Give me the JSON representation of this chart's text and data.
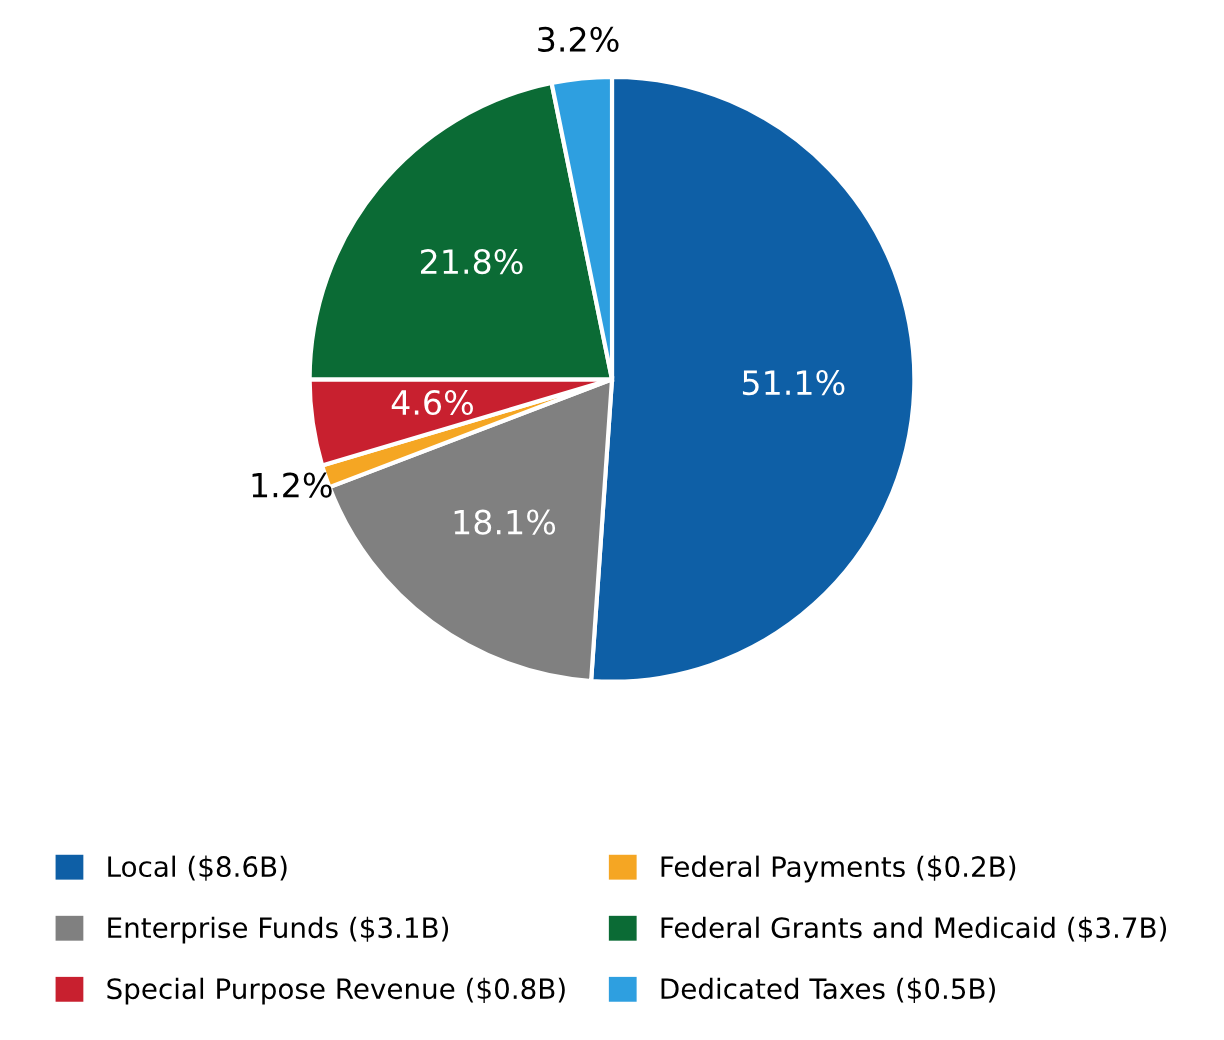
{
  "chart_data": {
    "type": "pie",
    "categories": [
      "Local ($8.6B)",
      "Enterprise Funds ($3.1B)",
      "Federal Payments ($0.2B)",
      "Special Purpose Revenue ($0.8B)",
      "Federal Grants and Medicaid ($3.7B)",
      "Dedicated Taxes ($0.5B)"
    ],
    "values": [
      51.1,
      18.1,
      1.2,
      4.6,
      21.8,
      3.2
    ],
    "value_labels": [
      "51.1%",
      "18.1%",
      "1.2%",
      "4.6%",
      "21.8%",
      "3.2%"
    ],
    "colors": [
      "#0e5fa6",
      "#808080",
      "#f5a623",
      "#c8202f",
      "#0b6b35",
      "#2e9fe0"
    ],
    "legend": "bottom"
  }
}
